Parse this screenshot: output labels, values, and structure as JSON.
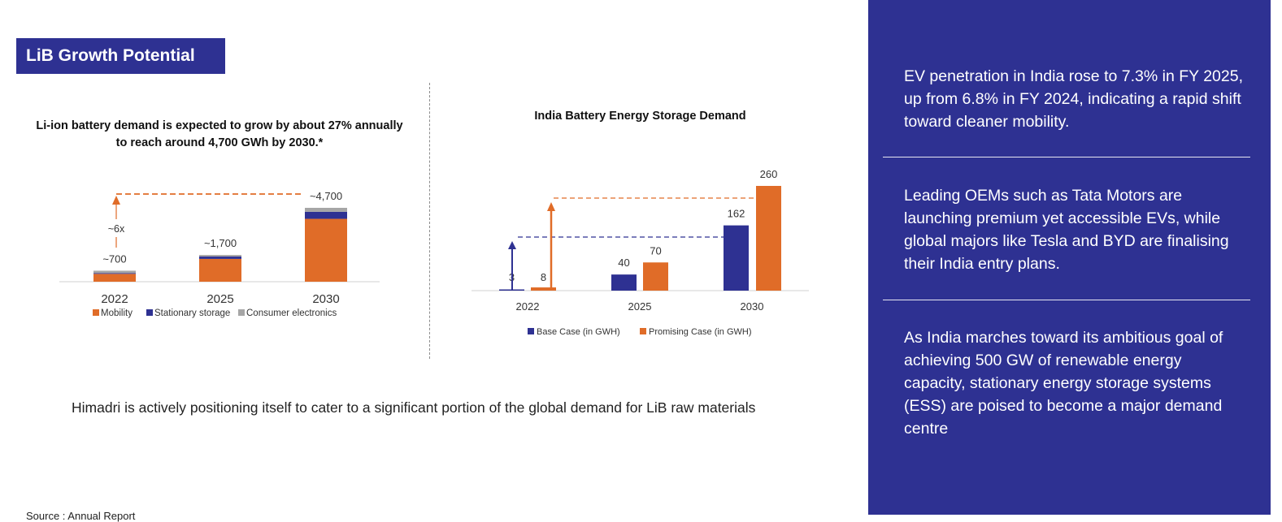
{
  "header": {
    "title": "LiB Growth Potential"
  },
  "colors": {
    "brand_navy": "#2e3192",
    "orange": "#e06c28",
    "gray": "#a6a6a6",
    "divider": "#8c8c8c"
  },
  "chart_data": [
    {
      "type": "bar",
      "stacked": true,
      "title": "Li-ion battery demand is expected to grow by about 27% annually to reach around 4,700 GWh by 2030.*",
      "categories": [
        "2022",
        "2025",
        "2030"
      ],
      "series": [
        {
          "name": "Mobility",
          "color": "#e06c28",
          "values": [
            500,
            1450,
            4000
          ]
        },
        {
          "name": "Stationary storage",
          "color": "#2e3192",
          "values": [
            50,
            150,
            450
          ]
        },
        {
          "name": "Consumer electronics",
          "color": "#a6a6a6",
          "values": [
            150,
            100,
            250
          ]
        }
      ],
      "totals_labels": [
        "~700",
        "~1,700",
        "~4,700"
      ],
      "totals": [
        700,
        1700,
        4700
      ],
      "annotation": {
        "text": "~6x",
        "from": "2022",
        "to": "2030"
      },
      "unit": "GWh",
      "ylim": [
        0,
        4700
      ],
      "legend": "bottom",
      "grid": false,
      "xlabel": "",
      "ylabel": ""
    },
    {
      "type": "bar",
      "stacked": false,
      "title": "India Battery Energy Storage Demand",
      "categories": [
        "2022",
        "2025",
        "2030"
      ],
      "series": [
        {
          "name": "Base Case (in GWH)",
          "color": "#2e3192",
          "values": [
            3,
            40,
            162
          ],
          "labels": [
            "3",
            "40",
            "162"
          ]
        },
        {
          "name": "Promising Case (in GWH)",
          "color": "#e06c28",
          "values": [
            8,
            70,
            260
          ],
          "labels": [
            "8",
            "70",
            "260"
          ]
        }
      ],
      "annotations": [
        "growth arrow Base Case 2022 to 2030",
        "growth arrow Promising Case 2022 to 2030"
      ],
      "unit": "GWh",
      "ylim": [
        0,
        260
      ],
      "legend": "bottom",
      "grid": false,
      "xlabel": "",
      "ylabel": ""
    }
  ],
  "note": "Himadri is actively positioning itself to cater to a significant portion of the global demand for LiB raw materials",
  "source": "Source : Annual Report",
  "panel": {
    "blocks": [
      "EV penetration in India rose to 7.3% in FY 2025, up from 6.8% in FY 2024, indicating a rapid shift toward cleaner mobility.",
      "Leading OEMs such as Tata Motors are launching premium yet accessible EVs, while global majors like Tesla and BYD are finalising their India entry plans.",
      "As India marches toward its ambitious goal of achieving 500 GW of renewable energy capacity, stationary energy storage systems (ESS) are poised to become a major demand centre"
    ]
  }
}
